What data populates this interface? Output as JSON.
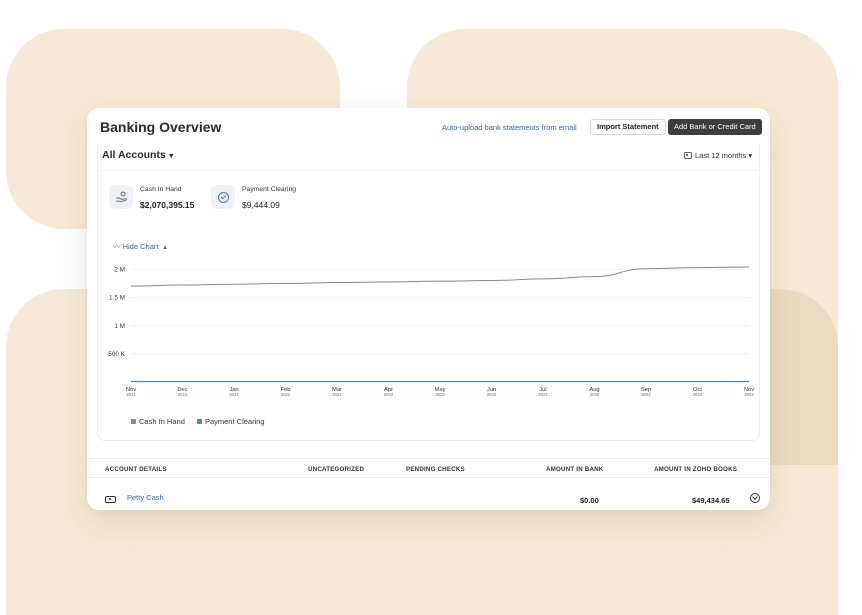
{
  "header": {
    "title": "Banking Overview",
    "auto_upload_link": "Auto-upload bank statements from email",
    "import_button": "Import Statement",
    "add_button": "Add Bank or Credit Card"
  },
  "filters": {
    "account_selector": "All Accounts",
    "period_selector": "Last 12 months"
  },
  "summary": [
    {
      "label": "Cash In Hand",
      "value": "$2,070,395.15",
      "icon": "hand-coins-icon"
    },
    {
      "label": "Payment Clearing",
      "value": "$9,444.09",
      "icon": "check-circle-icon"
    }
  ],
  "chart_toggle": "Hide Chart",
  "chart_data": {
    "type": "line",
    "x": [
      "Nov 2021",
      "Dec 2021",
      "Jan 2022",
      "Feb 2022",
      "Mar 2022",
      "Apr 2022",
      "May 2022",
      "Jun 2022",
      "Jul 2022",
      "Aug 2022",
      "Sep 2022",
      "Oct 2022",
      "Nov 2022"
    ],
    "x_month_labels": [
      "Nov",
      "Dec",
      "Jan",
      "Feb",
      "Mar",
      "Apr",
      "May",
      "Jun",
      "Jul",
      "Aug",
      "Sep",
      "Oct",
      "Nov"
    ],
    "x_year_labels": [
      "2021",
      "2021",
      "2022",
      "2022",
      "2022",
      "2022",
      "2022",
      "2022",
      "2022",
      "2022",
      "2022",
      "2022",
      "2022"
    ],
    "y_tick_values": [
      500000,
      1000000,
      1500000,
      2000000
    ],
    "y_tick_labels": [
      "500 K",
      "1 M",
      "1.5 M",
      "2 M"
    ],
    "ylim": [
      0,
      2200000
    ],
    "series": [
      {
        "name": "Cash In Hand",
        "color": "#7f8799",
        "values": [
          1700000,
          1720000,
          1735000,
          1750000,
          1765000,
          1775000,
          1790000,
          1800000,
          1830000,
          1870000,
          2010000,
          2030000,
          2040000
        ]
      },
      {
        "name": "Payment Clearing",
        "color": "#5b7fd1",
        "values": [
          9444,
          9444,
          9444,
          9444,
          9444,
          9444,
          9444,
          9444,
          9444,
          9444,
          9444,
          9444,
          9444
        ]
      }
    ],
    "grid": true,
    "legend": "bottom-left"
  },
  "table": {
    "headers": [
      "ACCOUNT DETAILS",
      "UNCATEGORIZED",
      "PENDING CHECKS",
      "AMOUNT IN BANK",
      "AMOUNT IN ZOHO BOOKS"
    ],
    "rows": [
      {
        "name": "Petty Cash",
        "amount_in_bank": "$0.00",
        "amount_in_books": "$49,434.65"
      }
    ]
  },
  "colors": {
    "background_blob": "#f6ead6",
    "link": "#3a63a8",
    "primary_button": "#3d3d3d"
  }
}
